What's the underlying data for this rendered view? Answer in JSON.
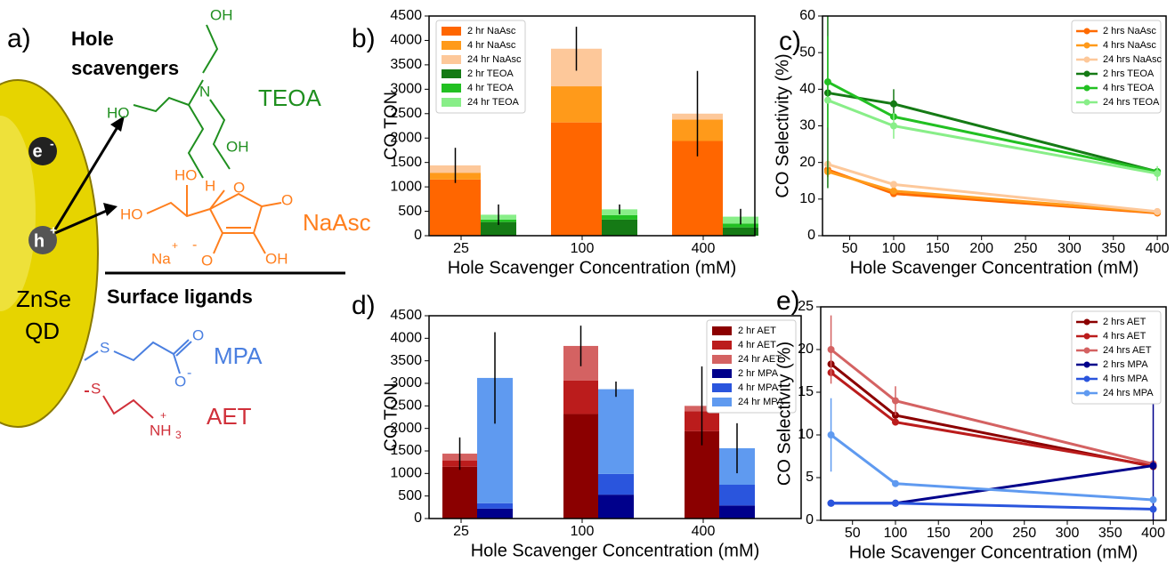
{
  "diagram": {
    "label": "a)",
    "title_lines": [
      "Hole",
      "scavengers"
    ],
    "teoa": "TEOA",
    "naasc": "NaAsc",
    "surface_ligands": "Surface ligands",
    "qd_lines": [
      "ZnSe",
      "QD"
    ],
    "mpa": "MPA",
    "aet": "AET",
    "electron": "e",
    "electron_charge": "-",
    "hole": "h",
    "hole_charge": "+",
    "atoms": {
      "teoa_oh_top": "OH",
      "teoa_ho_left": "HO",
      "teoa_n": "N",
      "teoa_oh_bottom": "OH",
      "asc_ho_top": "HO",
      "asc_h": "H",
      "asc_o_ring": "O",
      "asc_ho_left": "HO",
      "asc_o_keto": "O",
      "asc_na": "Na",
      "asc_plus": "+",
      "asc_o_minus": "O",
      "asc_minus": "-",
      "asc_oh": "OH",
      "mpa_s": "S",
      "mpa_o_top": "O",
      "mpa_o_bottom": "O",
      "mpa_minus": "-",
      "aet_s": "S",
      "aet_n": "NH",
      "aet_sub": "3",
      "aet_plus": "+"
    }
  },
  "chart_data": [
    {
      "type": "bar",
      "label": "b)",
      "ylabel": "CO TON",
      "xlabel": "Hole Scavenger Concentration (mM)",
      "categories": [
        "25",
        "100",
        "400"
      ],
      "ylim": [
        0,
        4500
      ],
      "yticks": [
        0,
        500,
        1000,
        1500,
        2000,
        2500,
        3000,
        3500,
        4000,
        4500
      ],
      "legend": "upper left",
      "series": [
        {
          "name": "2 hr NaAsc",
          "color": "#ff6600",
          "group": 0,
          "values": [
            1150,
            2320,
            1940
          ]
        },
        {
          "name": "4 hr NaAsc",
          "color": "#ff9a1a",
          "group": 0,
          "values": [
            140,
            740,
            440
          ]
        },
        {
          "name": "24 hr NaAsc",
          "color": "#fdc89a",
          "group": 0,
          "values": [
            150,
            770,
            120
          ],
          "errors": [
            360,
            450,
            875
          ]
        },
        {
          "name": "2 hr TEOA",
          "color": "#157a15",
          "group": 1,
          "values": [
            280,
            330,
            170
          ]
        },
        {
          "name": "4 hr TEOA",
          "color": "#22c022",
          "group": 1,
          "values": [
            50,
            90,
            80
          ]
        },
        {
          "name": "24 hr TEOA",
          "color": "#88ee88",
          "group": 1,
          "values": [
            100,
            120,
            140
          ],
          "errors": [
            210,
            100,
            160
          ]
        }
      ]
    },
    {
      "type": "line",
      "label": "c)",
      "ylabel": "CO Selectivity (%)",
      "xlabel": "Hole Scavenger Concentration (mM)",
      "x": [
        25,
        100,
        400
      ],
      "xlim": [
        19,
        410
      ],
      "xticks": [
        50,
        100,
        150,
        200,
        250,
        300,
        350,
        400
      ],
      "ylim": [
        0,
        60
      ],
      "yticks": [
        0,
        10,
        20,
        30,
        40,
        50,
        60
      ],
      "legend": "upper right",
      "series": [
        {
          "name": "2 hrs NaAsc",
          "color": "#ff6a00",
          "values": [
            18,
            11.5,
            6.2
          ],
          "errors": [
            2,
            null,
            null
          ]
        },
        {
          "name": "4 hrs NaAsc",
          "color": "#ff9a1a",
          "values": [
            17.5,
            12.2,
            6.4
          ]
        },
        {
          "name": "24 hrs NaAsc",
          "color": "#fdc89a",
          "values": [
            19.5,
            14,
            6.6
          ]
        },
        {
          "name": "2 hrs TEOA",
          "color": "#157a15",
          "values": [
            39,
            36,
            17.5
          ],
          "errors": [
            26,
            4,
            null
          ]
        },
        {
          "name": "4 hrs TEOA",
          "color": "#22c022",
          "values": [
            42,
            32.5,
            17.5
          ],
          "errors": [
            12.5,
            null,
            null
          ]
        },
        {
          "name": "24 hrs TEOA",
          "color": "#88ee88",
          "values": [
            37,
            30,
            17
          ],
          "errors": [
            null,
            3.5,
            2
          ]
        }
      ]
    },
    {
      "type": "bar",
      "label": "d)",
      "ylabel": "CO TON",
      "xlabel": "Hole Scavenger Concentration (mM)",
      "categories": [
        "25",
        "100",
        "400"
      ],
      "ylim": [
        0,
        4500
      ],
      "yticks": [
        0,
        500,
        1000,
        1500,
        2000,
        2500,
        3000,
        3500,
        4000,
        4500
      ],
      "legend": "upper right",
      "series": [
        {
          "name": "2 hr AET",
          "color": "#8b0000",
          "group": 0,
          "values": [
            1150,
            2320,
            1940
          ]
        },
        {
          "name": "4 hr AET",
          "color": "#bb1c1c",
          "group": 0,
          "values": [
            140,
            740,
            440
          ]
        },
        {
          "name": "24 hr AET",
          "color": "#d46262",
          "group": 0,
          "values": [
            150,
            770,
            120
          ],
          "errors": [
            360,
            450,
            875
          ]
        },
        {
          "name": "2 hr MPA",
          "color": "#00008b",
          "group": 1,
          "values": [
            220,
            530,
            290
          ]
        },
        {
          "name": "4 hr MPA",
          "color": "#2a55dd",
          "group": 1,
          "values": [
            120,
            460,
            460
          ]
        },
        {
          "name": "24 hr MPA",
          "color": "#5f9af0",
          "group": 1,
          "values": [
            2780,
            1880,
            810
          ],
          "errors": [
            1015,
            170,
            555
          ]
        }
      ]
    },
    {
      "type": "line",
      "label": "e)",
      "ylabel": "CO Selectivity (%)",
      "xlabel": "Hole Scavenger Concentration (mM)",
      "x": [
        25,
        100,
        400
      ],
      "xlim": [
        13,
        415
      ],
      "xticks": [
        50,
        100,
        150,
        200,
        250,
        300,
        350,
        400
      ],
      "ylim": [
        0,
        25
      ],
      "yticks": [
        0,
        5,
        10,
        15,
        20,
        25
      ],
      "legend": "upper right",
      "series": [
        {
          "name": "2 hrs AET",
          "color": "#8b0000",
          "values": [
            18.3,
            12.3,
            6.3
          ]
        },
        {
          "name": "4 hrs AET",
          "color": "#bb1c1c",
          "values": [
            17.3,
            11.5,
            6.4
          ]
        },
        {
          "name": "24 hrs AET",
          "color": "#d46262",
          "values": [
            20,
            14,
            6.6
          ],
          "errors": [
            4,
            1.7,
            null
          ]
        },
        {
          "name": "2 hrs MPA",
          "color": "#00008b",
          "values": [
            2,
            2,
            6.4
          ],
          "errors": [
            null,
            null,
            8.3
          ]
        },
        {
          "name": "4 hrs MPA",
          "color": "#2a55dd",
          "values": [
            2,
            2,
            1.3
          ]
        },
        {
          "name": "24 hrs MPA",
          "color": "#5f9af0",
          "values": [
            10,
            4.3,
            2.4
          ],
          "errors": [
            4.3,
            null,
            null
          ]
        }
      ]
    }
  ]
}
